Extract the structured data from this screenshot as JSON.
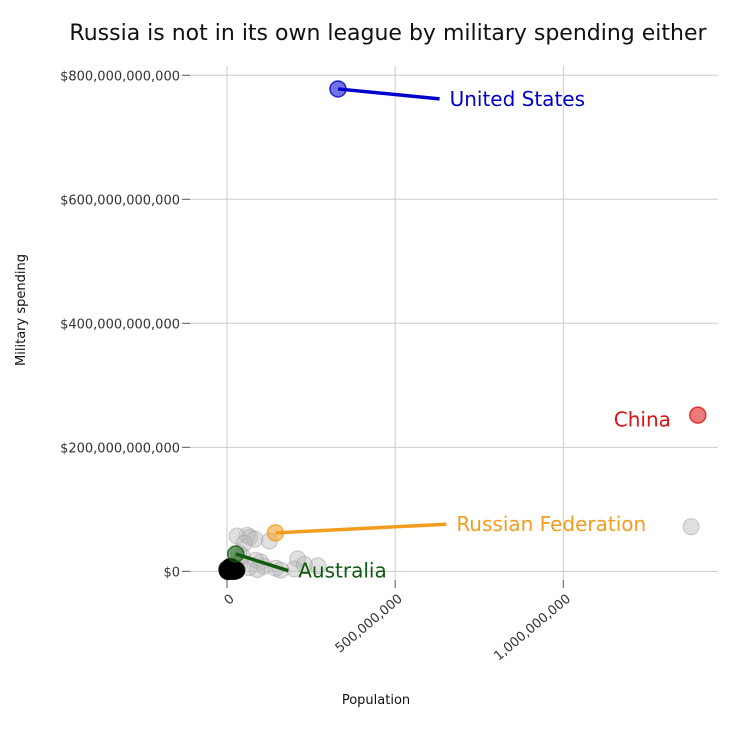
{
  "chart_data": {
    "type": "scatter",
    "title": "Russia is not in its own league by military spending either",
    "xlabel": "Population",
    "ylabel": "Military spending",
    "xlim": [
      -110000000,
      1460000000
    ],
    "ylim": [
      -14000000000,
      815000000000
    ],
    "x_ticks": [
      0,
      500000000,
      1000000000
    ],
    "x_tick_labels": [
      "0",
      "500,000,000",
      "1,000,000,000"
    ],
    "y_ticks": [
      0,
      200000000000,
      400000000000,
      600000000000,
      800000000000
    ],
    "y_tick_labels": [
      "$0",
      "$200,000,000,000",
      "$400,000,000,000",
      "$600,000,000,000",
      "$800,000,000,000"
    ],
    "grid": true,
    "background_points": [
      {
        "x": 1380000000,
        "y": 72000000000
      },
      {
        "x": 210000000,
        "y": 20000000000
      },
      {
        "x": 270000000,
        "y": 9000000000
      },
      {
        "x": 60000000,
        "y": 58000000000
      },
      {
        "x": 68000000,
        "y": 55000000000
      },
      {
        "x": 83000000,
        "y": 52000000000
      },
      {
        "x": 126000000,
        "y": 49000000000
      },
      {
        "x": 30000000,
        "y": 57000000000
      },
      {
        "x": 51000000,
        "y": 45000000000
      },
      {
        "x": 100000000,
        "y": 15000000000
      },
      {
        "x": 85000000,
        "y": 18000000000
      },
      {
        "x": 38000000,
        "y": 12000000000
      },
      {
        "x": 110000000,
        "y": 8000000000
      },
      {
        "x": 145000000,
        "y": 5000000000
      },
      {
        "x": 200000000,
        "y": 4000000000
      },
      {
        "x": 65000000,
        "y": 6000000000
      },
      {
        "x": 45000000,
        "y": 25000000000
      },
      {
        "x": 20000000,
        "y": 10000000000
      },
      {
        "x": 160000000,
        "y": 2000000000
      },
      {
        "x": 230000000,
        "y": 11000000000
      },
      {
        "x": 90000000,
        "y": 3000000000
      },
      {
        "x": 35000000,
        "y": 30000000000
      }
    ],
    "cluster_points": [
      {
        "x": 2000000,
        "y": 1000000000
      },
      {
        "x": 5000000,
        "y": 2000000000
      },
      {
        "x": 8000000,
        "y": 500000000
      },
      {
        "x": 10000000,
        "y": 3000000000
      },
      {
        "x": 12000000,
        "y": 1500000000
      },
      {
        "x": 15000000,
        "y": 4000000000
      },
      {
        "x": 18000000,
        "y": 800000000
      },
      {
        "x": 20000000,
        "y": 2500000000
      },
      {
        "x": 22000000,
        "y": 600000000
      },
      {
        "x": 25000000,
        "y": 1200000000
      },
      {
        "x": 6000000,
        "y": 5000000000
      },
      {
        "x": 14000000,
        "y": 6000000000
      },
      {
        "x": 3000000,
        "y": 300000000
      },
      {
        "x": 9000000,
        "y": 7000000000
      },
      {
        "x": 28000000,
        "y": 1800000000
      },
      {
        "x": 1000000,
        "y": 3500000000
      }
    ],
    "highlighted": [
      {
        "name": "United States",
        "x": 330000000,
        "y": 778000000000,
        "color": "#0000cc",
        "label_x": 650000000,
        "label_y": 762000000000,
        "anchor": "start"
      },
      {
        "name": "China",
        "x": 1400000000,
        "y": 252000000000,
        "color": "#dd1111",
        "label_x": 1320000000,
        "label_y": 245000000000,
        "anchor": "end"
      },
      {
        "name": "Russian Federation",
        "x": 144000000,
        "y": 62000000000,
        "color": "#f39c1e",
        "label_x": 670000000,
        "label_y": 76000000000,
        "anchor": "start"
      },
      {
        "name": "Australia",
        "x": 26000000,
        "y": 28000000000,
        "color": "#0f5c0f",
        "label_x": 200000000,
        "label_y": 1000000000,
        "anchor": "start"
      }
    ]
  }
}
